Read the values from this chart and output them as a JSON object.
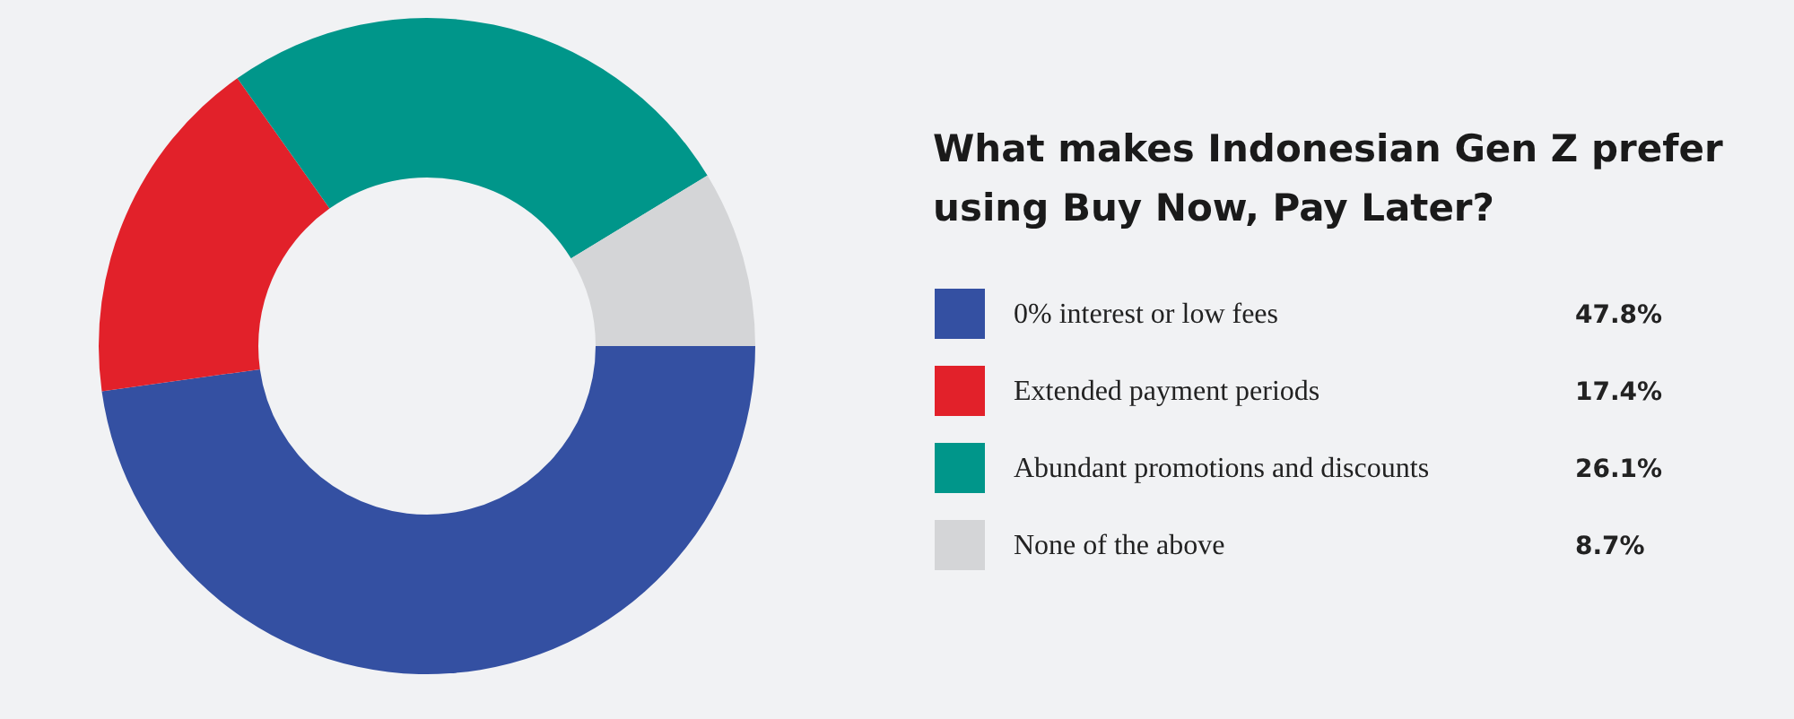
{
  "chart_data": {
    "type": "donut",
    "title": "What makes Indonesian Gen Z prefer using Buy Now, Pay Later?",
    "categories": [
      "0% interest or low fees",
      "Extended payment periods",
      "Abundant promotions and discounts",
      "None of the above"
    ],
    "values": [
      47.8,
      17.4,
      26.1,
      8.7
    ],
    "colors": [
      "#3450a2",
      "#e2212a",
      "#00968a",
      "#d4d5d7"
    ],
    "value_labels": [
      "47.8%",
      "17.4%",
      "26.1%",
      "8.7%"
    ],
    "legend": "right"
  }
}
